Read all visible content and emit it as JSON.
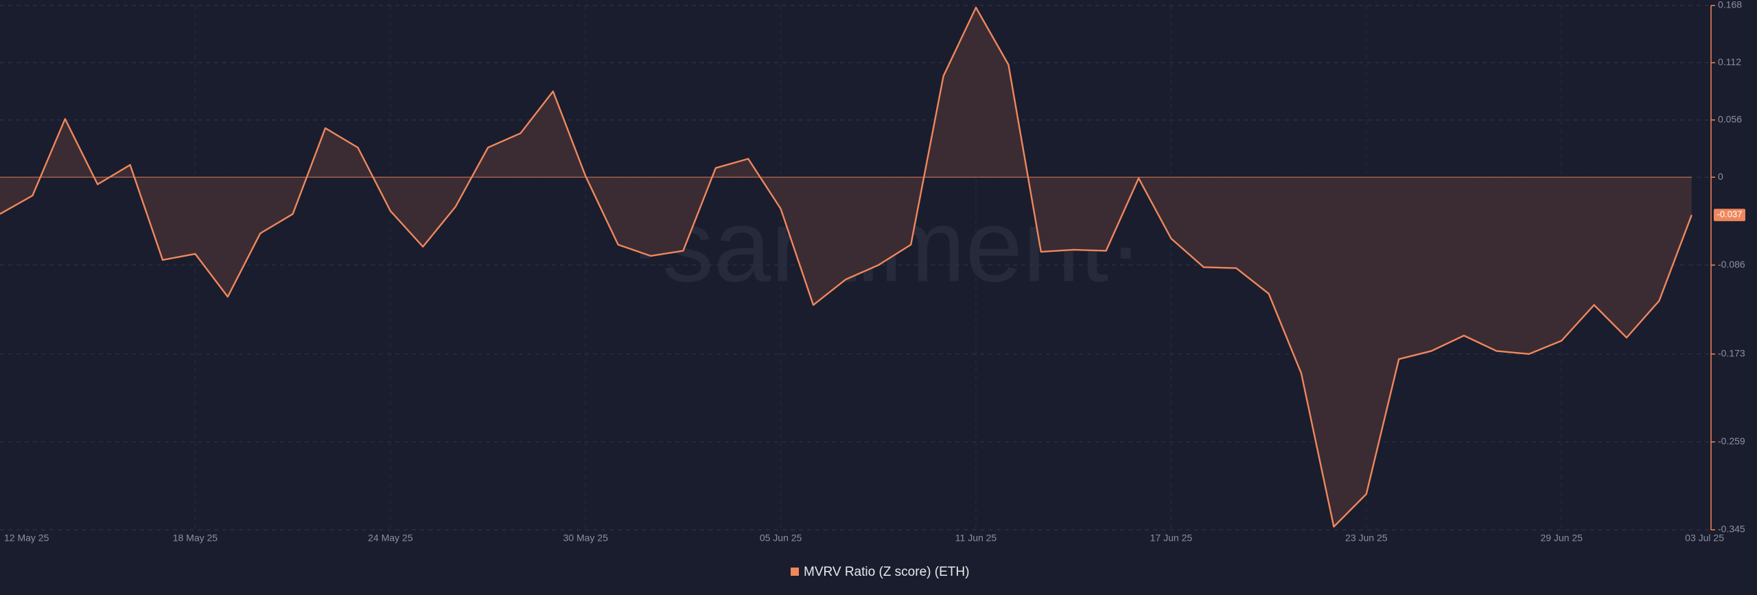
{
  "chart_data": {
    "type": "area",
    "watermark": "·santiment·",
    "categories": [
      "12 May 25",
      null,
      null,
      null,
      null,
      null,
      "18 May 25",
      null,
      null,
      null,
      null,
      null,
      "24 May 25",
      null,
      null,
      null,
      null,
      null,
      "30 May 25",
      null,
      null,
      null,
      null,
      null,
      "05 Jun 25",
      null,
      null,
      null,
      null,
      null,
      "11 Jun 25",
      null,
      null,
      null,
      null,
      null,
      "17 Jun 25",
      null,
      null,
      null,
      null,
      null,
      "23 Jun 25",
      null,
      null,
      null,
      null,
      null,
      "29 Jun 25",
      null,
      null,
      null,
      "03 Jul 25"
    ],
    "series": [
      {
        "name": "MVRV Ratio (Z score) (ETH)",
        "color": "#f0875d",
        "values": [
          -0.036,
          -0.018,
          0.057,
          -0.007,
          0.012,
          -0.081,
          -0.075,
          -0.117,
          -0.055,
          -0.036,
          0.048,
          0.029,
          -0.033,
          -0.068,
          -0.029,
          0.029,
          0.043,
          0.084,
          0.001,
          -0.066,
          -0.077,
          -0.072,
          0.009,
          0.018,
          -0.031,
          -0.125,
          -0.1,
          -0.086,
          -0.066,
          0.099,
          0.166,
          0.11,
          -0.073,
          -0.071,
          -0.072,
          -0.001,
          -0.06,
          -0.088,
          -0.089,
          -0.114,
          -0.192,
          -0.342,
          -0.31,
          -0.178,
          -0.17,
          -0.155,
          -0.17,
          -0.173,
          -0.16,
          -0.125,
          -0.157,
          -0.121,
          -0.037
        ]
      }
    ],
    "ylim": [
      -0.345,
      0.168
    ],
    "yticks": [
      0.168,
      0.112,
      0.056,
      0,
      -0.086,
      -0.173,
      -0.259,
      -0.345
    ],
    "grid": true
  }
}
